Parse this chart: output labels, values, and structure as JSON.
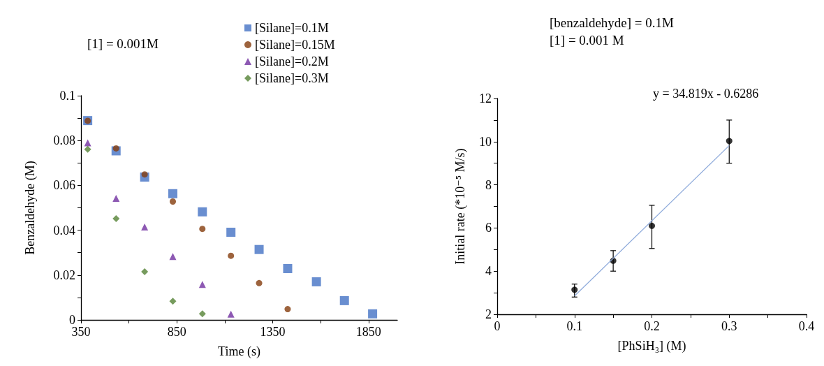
{
  "chart_data": [
    {
      "type": "scatter",
      "title": "[1] = 0.001M",
      "xlabel": "Time (s)",
      "ylabel": "Benzaldehyde (M)",
      "xlim": [
        350,
        2000
      ],
      "xticks": [
        350,
        {
          "value": 600,
          "label": null
        },
        850,
        {
          "value": 1100,
          "label": null
        },
        1350,
        {
          "value": 1600,
          "label": null
        },
        1850
      ],
      "ylim": [
        0,
        0.1
      ],
      "yticks": [
        0,
        {
          "value": 0.01,
          "label": null
        },
        0.02,
        {
          "value": 0.03,
          "label": null
        },
        0.04,
        {
          "value": 0.05,
          "label": null
        },
        0.06,
        {
          "value": 0.07,
          "label": null
        },
        0.08,
        {
          "value": 0.09,
          "label": null
        },
        0.1
      ],
      "grid": false,
      "legend": "top right",
      "series": [
        {
          "name": "[Silane]=0.1M",
          "color": "#4472c4",
          "marker": "square",
          "x": [
            385,
            533,
            682,
            829,
            983,
            1132,
            1279,
            1428,
            1578,
            1724,
            1871
          ],
          "values": [
            0.0889,
            0.0754,
            0.0637,
            0.0563,
            0.0482,
            0.0391,
            0.0314,
            0.0229,
            0.017,
            0.0086,
            0.0027
          ]
        },
        {
          "name": "[Silane]=0.15M",
          "color": "#843c0c",
          "marker": "circle",
          "x": [
            385,
            533,
            682,
            829,
            983,
            1132,
            1279,
            1428
          ],
          "values": [
            0.0888,
            0.0765,
            0.0649,
            0.0528,
            0.0406,
            0.0286,
            0.0164,
            0.0048
          ]
        },
        {
          "name": "[Silane]=0.2M",
          "color": "#7030a0",
          "marker": "triangle",
          "x": [
            385,
            533,
            682,
            829,
            983,
            1132
          ],
          "values": [
            0.079,
            0.0542,
            0.0414,
            0.0283,
            0.0158,
            0.0026
          ]
        },
        {
          "name": "[Silane]=0.3M",
          "color": "#548235",
          "marker": "diamond",
          "x": [
            385,
            533,
            682,
            829,
            983
          ],
          "values": [
            0.0761,
            0.0452,
            0.0215,
            0.0083,
            0.0027
          ]
        }
      ]
    },
    {
      "type": "scatter",
      "title": "[benzaldehyde] = 0.1M",
      "subtitle": "[1] = 0.001 M",
      "xlabel": "[PhSiH₃] (M)",
      "ylabel": "Initial rate (*10⁻⁵ M/s)",
      "annotations": [
        "y = 34.819x - 0.6286"
      ],
      "xlim": [
        0,
        0.4
      ],
      "xticks": [
        0,
        {
          "value": 0.05,
          "label": null
        },
        0.1,
        {
          "value": 0.15,
          "label": null
        },
        0.2,
        {
          "value": 0.25,
          "label": null
        },
        0.3,
        {
          "value": 0.35,
          "label": null
        },
        0.4
      ],
      "ylim": [
        2,
        12
      ],
      "yticks": [
        2,
        {
          "value": 3,
          "label": null
        },
        4,
        {
          "value": 5,
          "label": null
        },
        6,
        {
          "value": 7,
          "label": null
        },
        8,
        {
          "value": 9,
          "label": null
        },
        10,
        {
          "value": 11,
          "label": null
        },
        12
      ],
      "grid": false,
      "series": [
        {
          "color": "#000000",
          "marker": "circle",
          "x": [
            0.1,
            0.15,
            0.2,
            0.3
          ],
          "values": [
            3.14,
            4.48,
            6.1,
            10.03
          ],
          "errors": [
            [
              2.8,
              3.4
            ],
            [
              4.0,
              4.95
            ],
            [
              5.05,
              7.05
            ],
            [
              9.0,
              11.0
            ]
          ]
        },
        {
          "type": "line",
          "color": "#8eaadb",
          "marker": "none",
          "line_style": "solid",
          "x": [
            0.1,
            0.3
          ],
          "values": [
            2.85,
            9.82
          ]
        }
      ]
    }
  ]
}
